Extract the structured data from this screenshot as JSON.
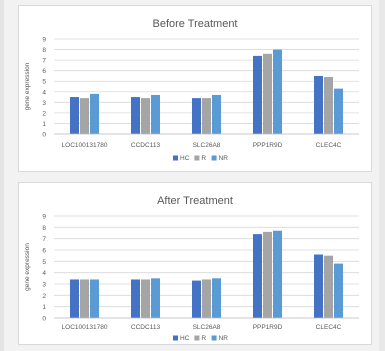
{
  "chart_data": [
    {
      "type": "bar",
      "title": "Before Treatment",
      "ylabel": "gene expression",
      "xlabel": "",
      "categories": [
        "LOC100131780",
        "CCDC113",
        "SLC26A8",
        "PPP1R9D",
        "CLEC4C"
      ],
      "ylim": [
        0,
        9
      ],
      "yticks": [
        "0",
        "1",
        "2",
        "3",
        "4",
        "5",
        "6",
        "7",
        "8",
        "9"
      ],
      "grid": true,
      "legend_position": "bottom",
      "series": [
        {
          "name": "HC",
          "color": "#4472c4",
          "values": [
            3.5,
            3.5,
            3.4,
            7.4,
            5.5
          ]
        },
        {
          "name": "R",
          "color": "#a5a5a5",
          "values": [
            3.4,
            3.4,
            3.4,
            7.6,
            5.4
          ]
        },
        {
          "name": "NR",
          "color": "#5b9bd5",
          "values": [
            3.8,
            3.7,
            3.7,
            8.0,
            4.3
          ]
        }
      ]
    },
    {
      "type": "bar",
      "title": "After Treatment",
      "ylabel": "gene expression",
      "xlabel": "",
      "categories": [
        "LOC100131780",
        "CCDC113",
        "SLC26A8",
        "PPP1R9D",
        "CLEC4C"
      ],
      "ylim": [
        0,
        9
      ],
      "yticks": [
        "0",
        "1",
        "2",
        "3",
        "4",
        "5",
        "6",
        "7",
        "8",
        "9"
      ],
      "grid": true,
      "legend_position": "bottom",
      "series": [
        {
          "name": "HC",
          "color": "#4472c4",
          "values": [
            3.4,
            3.4,
            3.3,
            7.4,
            5.6
          ]
        },
        {
          "name": "R",
          "color": "#a5a5a5",
          "values": [
            3.4,
            3.4,
            3.4,
            7.6,
            5.5
          ]
        },
        {
          "name": "NR",
          "color": "#5b9bd5",
          "values": [
            3.4,
            3.5,
            3.5,
            7.7,
            4.8
          ]
        }
      ]
    }
  ]
}
